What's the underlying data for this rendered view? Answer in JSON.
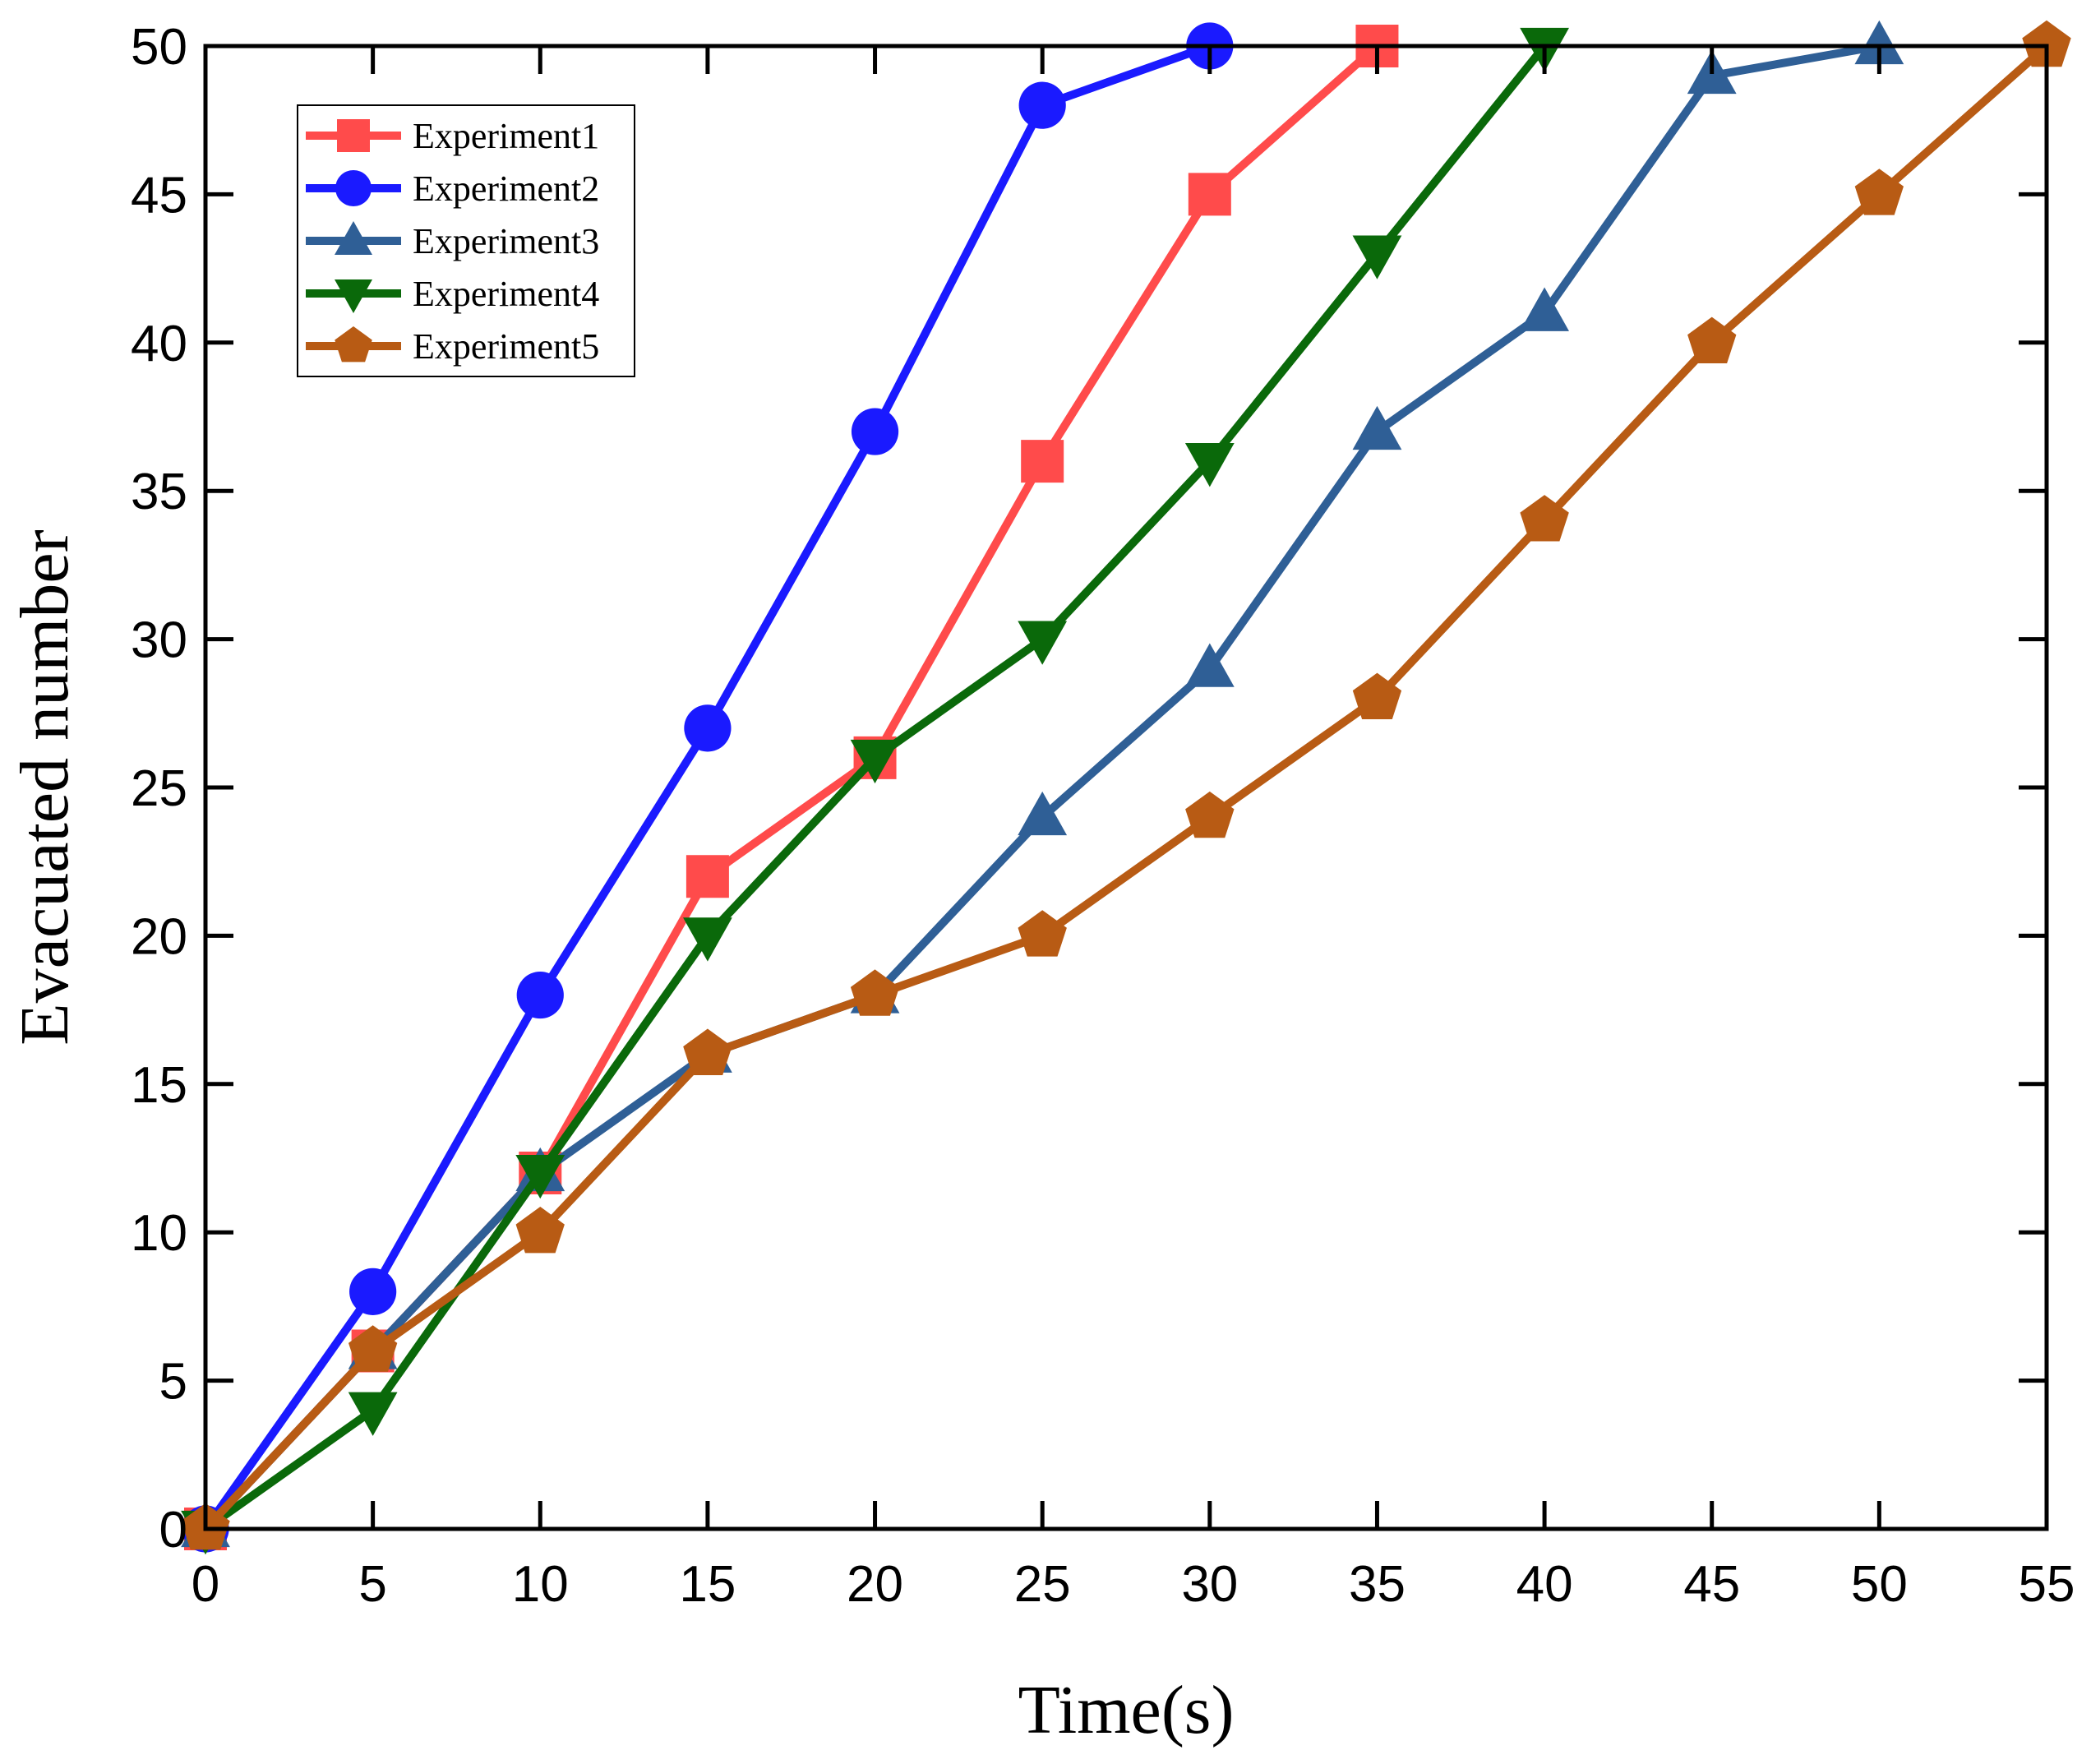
{
  "chart_data": {
    "type": "line",
    "title": "",
    "xlabel": "Time(s)",
    "ylabel": "Evacuated number",
    "xlim": [
      0,
      55
    ],
    "ylim": [
      0,
      50
    ],
    "xticks": [
      0,
      5,
      10,
      15,
      20,
      25,
      30,
      35,
      40,
      45,
      50,
      55
    ],
    "yticks": [
      0,
      5,
      10,
      15,
      20,
      25,
      30,
      35,
      40,
      45,
      50
    ],
    "grid": false,
    "legend_position": "top-left",
    "series": [
      {
        "name": "Experiment1",
        "color": "#ff4b4b",
        "marker": "square",
        "x": [
          0,
          5,
          10,
          15,
          20,
          25,
          30,
          35
        ],
        "values": [
          0,
          6,
          12,
          22,
          26,
          36,
          45,
          50
        ]
      },
      {
        "name": "Experiment2",
        "color": "#1a1aff",
        "marker": "circle",
        "x": [
          0,
          5,
          10,
          15,
          20,
          25,
          30
        ],
        "values": [
          0,
          8,
          18,
          27,
          37,
          48,
          50
        ]
      },
      {
        "name": "Experiment3",
        "color": "#2f5f96",
        "marker": "triangle-up",
        "x": [
          0,
          5,
          10,
          15,
          20,
          25,
          30,
          35,
          40,
          45,
          50
        ],
        "values": [
          0,
          6,
          12,
          16,
          18,
          24,
          29,
          37,
          41,
          49,
          50
        ]
      },
      {
        "name": "Experiment4",
        "color": "#0a690a",
        "marker": "triangle-down",
        "x": [
          0,
          5,
          10,
          15,
          20,
          25,
          30,
          35,
          40
        ],
        "values": [
          0,
          4,
          12,
          20,
          26,
          30,
          36,
          43,
          50
        ]
      },
      {
        "name": "Experiment5",
        "color": "#b85b14",
        "marker": "pentagon",
        "x": [
          0,
          5,
          10,
          15,
          20,
          25,
          30,
          35,
          40,
          45,
          50,
          55
        ],
        "values": [
          0,
          6,
          10,
          16,
          18,
          20,
          24,
          28,
          34,
          40,
          45,
          50
        ]
      }
    ]
  }
}
